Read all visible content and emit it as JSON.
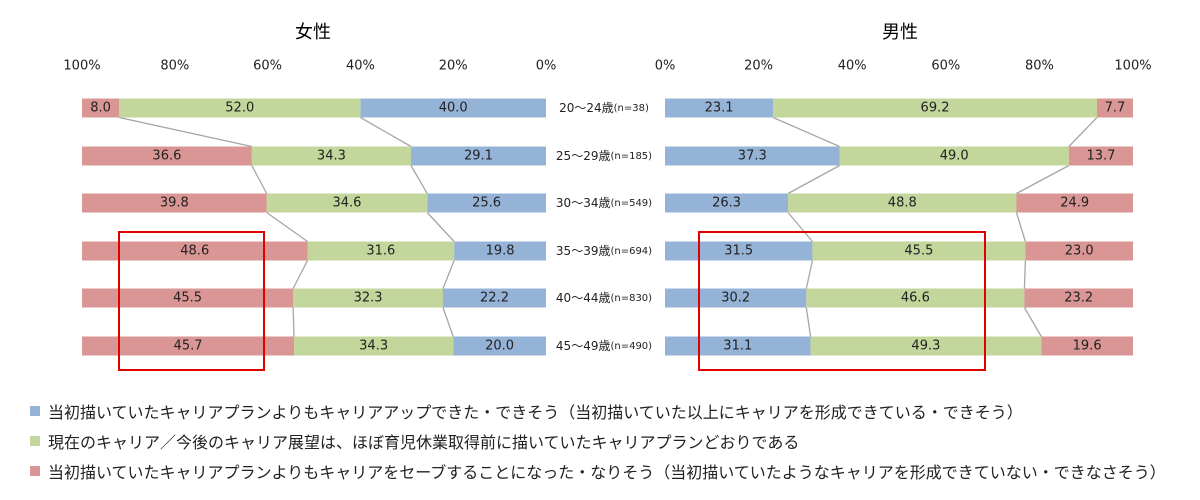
{
  "chart_data": [
    {
      "type": "bar",
      "stacked": true,
      "orientation": "horizontal",
      "direction": "reversed",
      "title": "女性",
      "xlim": [
        0,
        100
      ],
      "ticks": [
        "100%",
        "80%",
        "60%",
        "40%",
        "20%",
        "0%"
      ],
      "categories": [
        "20～24歳(n=38)",
        "25～29歳(n=185)",
        "30～34歳(n=549)",
        "35～39歳(n=694)",
        "40～44歳(n=830)",
        "45～49歳(n=490)"
      ],
      "series": [
        {
          "key": "up",
          "values": [
            40.0,
            29.1,
            25.6,
            19.8,
            22.2,
            20.0
          ]
        },
        {
          "key": "same",
          "values": [
            52.0,
            34.3,
            34.6,
            31.6,
            32.3,
            34.3
          ]
        },
        {
          "key": "save",
          "values": [
            8.0,
            36.6,
            39.8,
            48.6,
            45.5,
            45.7
          ]
        }
      ],
      "highlight_categories": [
        3,
        4,
        5
      ],
      "highlight_series": "save"
    },
    {
      "type": "bar",
      "stacked": true,
      "orientation": "horizontal",
      "direction": "normal",
      "title": "男性",
      "xlim": [
        0,
        100
      ],
      "ticks": [
        "0%",
        "20%",
        "40%",
        "60%",
        "80%",
        "100%"
      ],
      "categories": [
        "20～24歳(n=38)",
        "25～29歳(n=185)",
        "30～34歳(n=549)",
        "35～39歳(n=694)",
        "40～44歳(n=830)",
        "45～49歳(n=490)"
      ],
      "series": [
        {
          "key": "up",
          "values": [
            23.1,
            37.3,
            26.3,
            31.5,
            30.2,
            31.1
          ]
        },
        {
          "key": "same",
          "values": [
            69.2,
            49.0,
            48.8,
            45.5,
            46.6,
            49.3
          ]
        },
        {
          "key": "save",
          "values": [
            7.7,
            13.7,
            24.9,
            23.0,
            23.2,
            19.6
          ]
        }
      ],
      "highlight_categories": [
        3,
        4,
        5
      ],
      "highlight_series": "up_same"
    }
  ],
  "category_labels": [
    {
      "age": "20～24歳",
      "n": "(n=38)"
    },
    {
      "age": "25～29歳",
      "n": "(n=185)"
    },
    {
      "age": "30～34歳",
      "n": "(n=549)"
    },
    {
      "age": "35～39歳",
      "n": "(n=694)"
    },
    {
      "age": "40～44歳",
      "n": "(n=830)"
    },
    {
      "age": "45～49歳",
      "n": "(n=490)"
    }
  ],
  "legend": [
    {
      "key": "up",
      "label": "当初描いていたキャリアプランよりもキャリアアップできた・できそう（当初描いていた以上にキャリアを形成できている・できそう）"
    },
    {
      "key": "same",
      "label": "現在のキャリア／今後のキャリア展望は、ほぼ育児休業取得前に描いていたキャリアプランどおりである"
    },
    {
      "key": "save",
      "label": "当初描いていたキャリアプランよりもキャリアをセーブすることになった・なりそう（当初描いていたようなキャリアを形成できていない・できなさそう）"
    }
  ],
  "colors": {
    "up": "#95b3d7",
    "same": "#c3d69b",
    "save": "#d99694",
    "connector": "#a6a6a6",
    "highlight": "#e00000",
    "text": "#222222"
  }
}
